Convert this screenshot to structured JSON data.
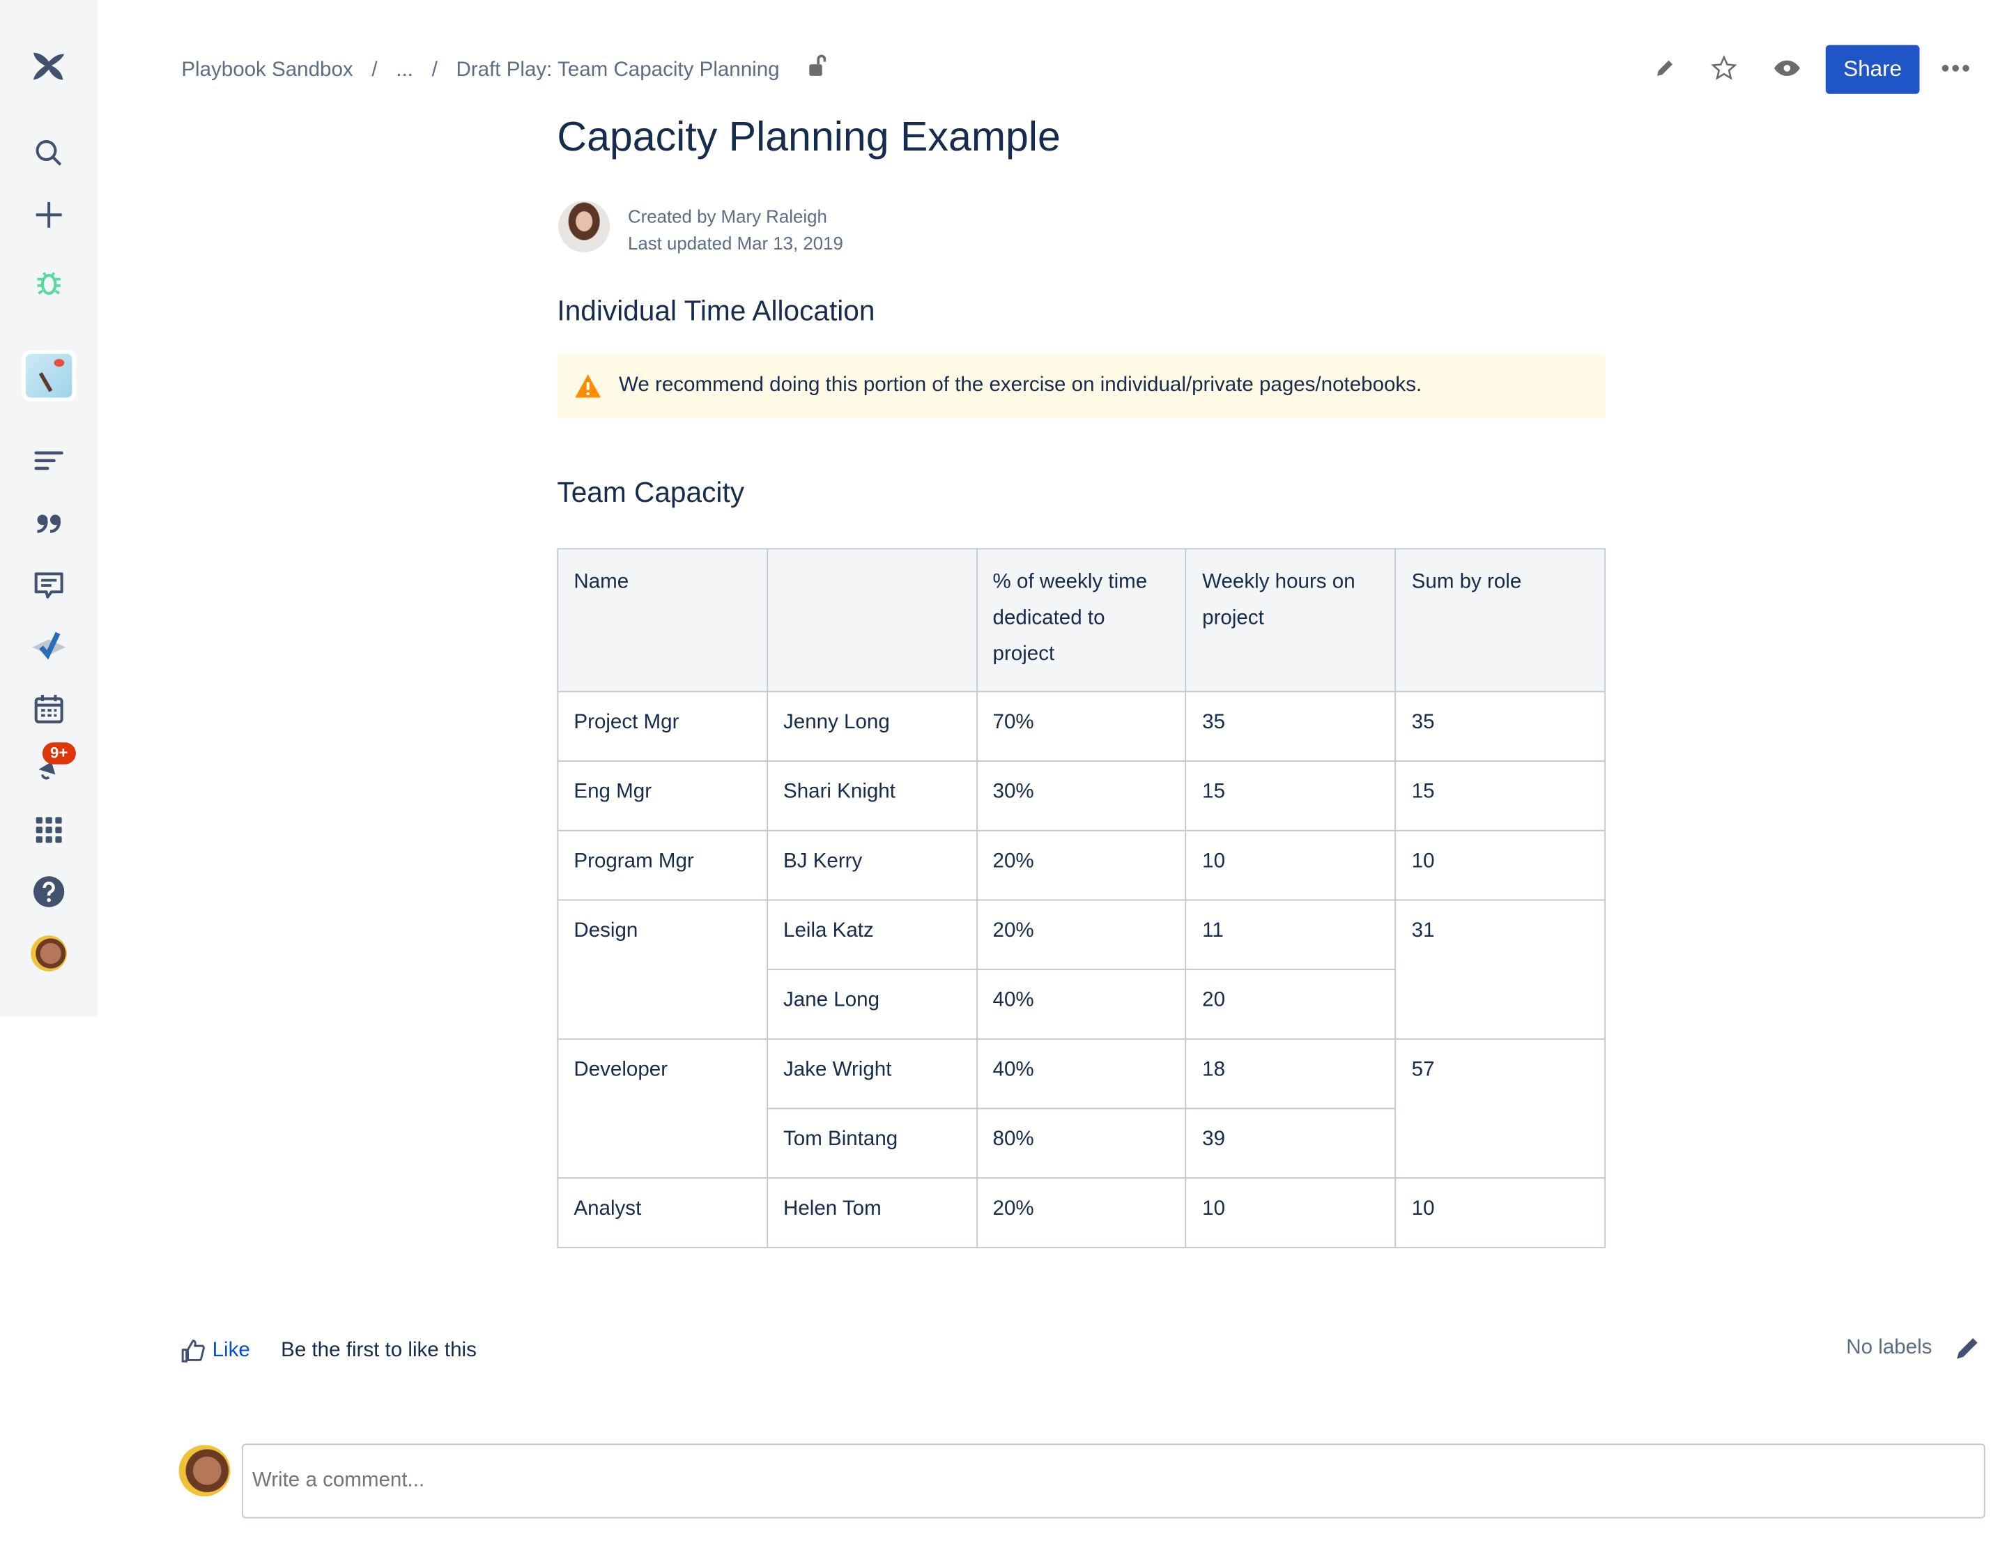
{
  "colors": {
    "accent": "#1f55c6",
    "sidebar_bg": "#f4f5f7",
    "warning_bg": "#fffae6",
    "warning_icon": "#ff8b00",
    "badge": "#de350b",
    "bug_icon": "#57d9a3"
  },
  "sidebar": {
    "items": [
      "confluence-logo",
      "search-icon",
      "create-icon",
      "bug-icon",
      "space-avatar",
      "pages-icon",
      "quote-icon",
      "comment-icon",
      "check-icon",
      "calendar-icon",
      "notifications-icon",
      "apps-icon",
      "help-icon",
      "profile-avatar"
    ],
    "notification_badge": "9+"
  },
  "breadcrumbs": [
    "Playbook Sandbox",
    "/",
    "...",
    "/",
    "Draft Play: Team Capacity Planning"
  ],
  "toolbar": {
    "share_label": "Share"
  },
  "page": {
    "title": "Capacity Planning Example",
    "created_by": "Created by Mary Raleigh",
    "last_updated": "Last updated Mar 13, 2019",
    "section1": "Individual Time Allocation",
    "warning": "We recommend doing this portion of the exercise on individual/private pages/notebooks.",
    "section2": "Team Capacity"
  },
  "table": {
    "headers": [
      "Name",
      "",
      "% of weekly time dedicated to project",
      "Weekly hours on project",
      "Sum by role"
    ],
    "rows": [
      {
        "role": "Project Mgr",
        "name": "Jenny Long",
        "pct": "70%",
        "hours": "35",
        "sum": "35"
      },
      {
        "role": "Eng Mgr",
        "name": "Shari Knight",
        "pct": "30%",
        "hours": "15",
        "sum": "15"
      },
      {
        "role": "Program Mgr",
        "name": "BJ Kerry",
        "pct": "20%",
        "hours": "10",
        "sum": "10"
      },
      {
        "role": "Design",
        "name": "Leila Katz",
        "pct": "20%",
        "hours": "11",
        "sum": "31"
      },
      {
        "name": "Jane Long",
        "pct": "40%",
        "hours": "20"
      },
      {
        "role": "Developer",
        "name": "Jake Wright",
        "pct": "40%",
        "hours": "18",
        "sum": "57"
      },
      {
        "name": "Tom Bintang",
        "pct": "80%",
        "hours": "39"
      },
      {
        "role": "Analyst",
        "name": "Helen Tom",
        "pct": "20%",
        "hours": "10",
        "sum": "10"
      }
    ]
  },
  "footer": {
    "like_label": "Like",
    "like_status": "Be the first to like this",
    "labels": "No labels",
    "comment_placeholder": "Write a comment..."
  }
}
